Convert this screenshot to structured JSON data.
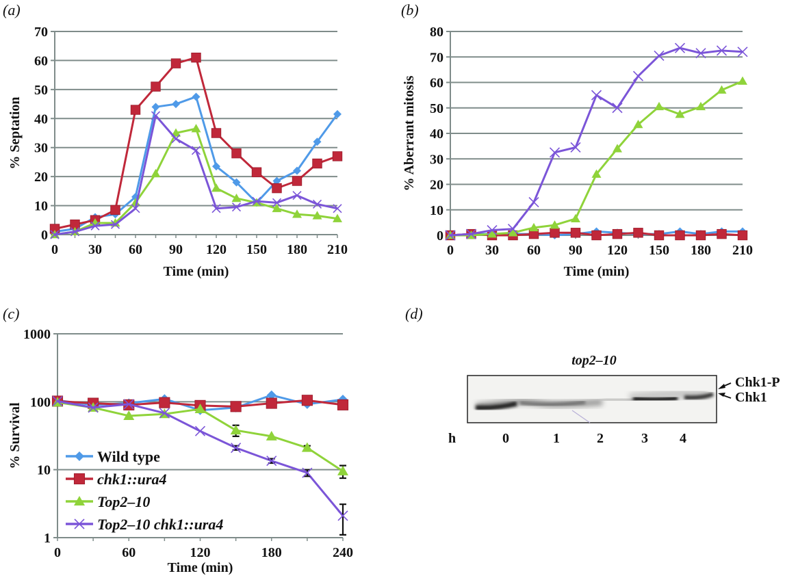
{
  "colors": {
    "wild_type": "#4f9ae8",
    "chk1_ura4": "#c0283a",
    "top2_10": "#8fd33a",
    "top2_10_chk1_ura4": "#7b55d8",
    "grid": "#7f8c8a"
  },
  "panels": {
    "a": {
      "label": "(a)"
    },
    "b": {
      "label": "(b)"
    },
    "c": {
      "label": "(c)"
    },
    "d": {
      "label": "(d)"
    }
  },
  "chart_data": [
    {
      "id": "a",
      "type": "line",
      "title": "",
      "xlabel": "Time (min)",
      "ylabel": "% Septation",
      "xlim": [
        0,
        210
      ],
      "ylim": [
        0,
        70
      ],
      "xticks": [
        0,
        30,
        60,
        90,
        120,
        150,
        180,
        210
      ],
      "yticks": [
        0,
        10,
        20,
        30,
        40,
        50,
        60,
        70
      ],
      "grid": true,
      "x": [
        0,
        15,
        30,
        45,
        60,
        75,
        90,
        105,
        120,
        135,
        150,
        165,
        180,
        195,
        210
      ],
      "series": [
        {
          "name": "Wild type",
          "key": "wild_type",
          "marker": "diamond",
          "values": [
            1,
            2,
            6,
            7,
            13,
            44,
            45,
            47.5,
            23.5,
            18,
            11,
            18.5,
            22,
            32,
            41.5
          ]
        },
        {
          "name": "chk1::ura4",
          "key": "chk1_ura4",
          "marker": "square",
          "values": [
            2,
            3.5,
            5,
            8.5,
            43,
            51,
            59,
            61,
            35,
            28,
            21.5,
            16,
            18.5,
            24.5,
            27
          ]
        },
        {
          "name": "Top2-10",
          "key": "top2_10",
          "marker": "triangle",
          "values": [
            0,
            1,
            4,
            4,
            11,
            21,
            35,
            36.5,
            16,
            12.5,
            11,
            9,
            7,
            6.5,
            5.5
          ]
        },
        {
          "name": "Top2-10 chk1::ura4",
          "key": "top2_10_chk1_ura4",
          "marker": "x",
          "values": [
            0,
            1,
            3,
            3.5,
            9,
            41,
            33,
            29,
            9,
            9.5,
            11.5,
            11,
            13.5,
            10.5,
            9
          ]
        }
      ]
    },
    {
      "id": "b",
      "type": "line",
      "title": "",
      "xlabel": "Time (min)",
      "ylabel": "% Aberrant mitosis",
      "xlim": [
        0,
        210
      ],
      "ylim": [
        0,
        80
      ],
      "xticks": [
        0,
        30,
        60,
        90,
        120,
        150,
        180,
        210
      ],
      "yticks": [
        0,
        10,
        20,
        30,
        40,
        50,
        60,
        70,
        80
      ],
      "grid": true,
      "x": [
        0,
        15,
        30,
        45,
        60,
        75,
        90,
        105,
        120,
        135,
        150,
        165,
        180,
        195,
        210
      ],
      "series": [
        {
          "name": "Wild type",
          "key": "wild_type",
          "marker": "diamond",
          "values": [
            0,
            0.5,
            0.5,
            0.5,
            0.5,
            0,
            0.5,
            1.5,
            1,
            0.5,
            0.5,
            1.5,
            0.5,
            1.5,
            1.5
          ]
        },
        {
          "name": "chk1::ura4",
          "key": "chk1_ura4",
          "marker": "square",
          "values": [
            0,
            0.5,
            0,
            0,
            0.5,
            1,
            1,
            0,
            0.5,
            1,
            0,
            0,
            0,
            0.5,
            0
          ]
        },
        {
          "name": "Top2-10",
          "key": "top2_10",
          "marker": "triangle",
          "values": [
            0,
            0,
            0.5,
            1,
            3,
            4,
            6.5,
            24,
            34,
            43.5,
            50.5,
            47.5,
            50.5,
            57,
            60.5
          ]
        },
        {
          "name": "Top2-10 chk1::ura4",
          "key": "top2_10_chk1_ura4",
          "marker": "x",
          "values": [
            0,
            0.5,
            2,
            2.5,
            13,
            32.5,
            34.5,
            55,
            50,
            62.5,
            70.5,
            73.5,
            71.5,
            72.5,
            72
          ]
        }
      ]
    },
    {
      "id": "c",
      "type": "line",
      "title": "",
      "xlabel": "Time (min)",
      "ylabel": "% Survival",
      "yscale": "log",
      "xlim": [
        0,
        240
      ],
      "ylim": [
        1,
        1000
      ],
      "xticks": [
        0,
        60,
        120,
        180,
        240
      ],
      "yticks": [
        1,
        10,
        100,
        1000
      ],
      "grid": true,
      "legend": "bottom-left",
      "x": [
        0,
        30,
        60,
        90,
        120,
        150,
        180,
        210,
        240
      ],
      "series": [
        {
          "name": "Wild type",
          "key": "wild_type",
          "marker": "diamond",
          "italic": false,
          "values": [
            105,
            90,
            95,
            110,
            75,
            82,
            125,
            92,
            108
          ]
        },
        {
          "name": "chk1::ura4",
          "key": "chk1_ura4",
          "marker": "square",
          "italic": true,
          "values": [
            102,
            95,
            90,
            97,
            88,
            85,
            95,
            105,
            90
          ]
        },
        {
          "name": "Top2–10",
          "key": "top2_10",
          "marker": "triangle",
          "italic": true,
          "values": [
            98,
            82,
            62,
            66,
            78,
            38,
            31,
            21,
            9.5
          ],
          "errors": [
            0,
            0,
            0,
            0,
            0,
            7,
            0,
            1.5,
            2
          ]
        },
        {
          "name": "Top2–10 chk1::ura4",
          "key": "top2_10_chk1_ura4",
          "marker": "x",
          "italic": true,
          "values": [
            102,
            82,
            92,
            68,
            37,
            21,
            13.5,
            9,
            2.1
          ],
          "errors": [
            0,
            0,
            0,
            0,
            0,
            1.5,
            1,
            1,
            1
          ]
        }
      ]
    }
  ],
  "blot": {
    "title": "top2–10",
    "band_labels": [
      "Chk1-P",
      "Chk1"
    ],
    "lane_axis_label": "h",
    "lanes": [
      "0",
      "1",
      "2",
      "3",
      "4"
    ]
  }
}
